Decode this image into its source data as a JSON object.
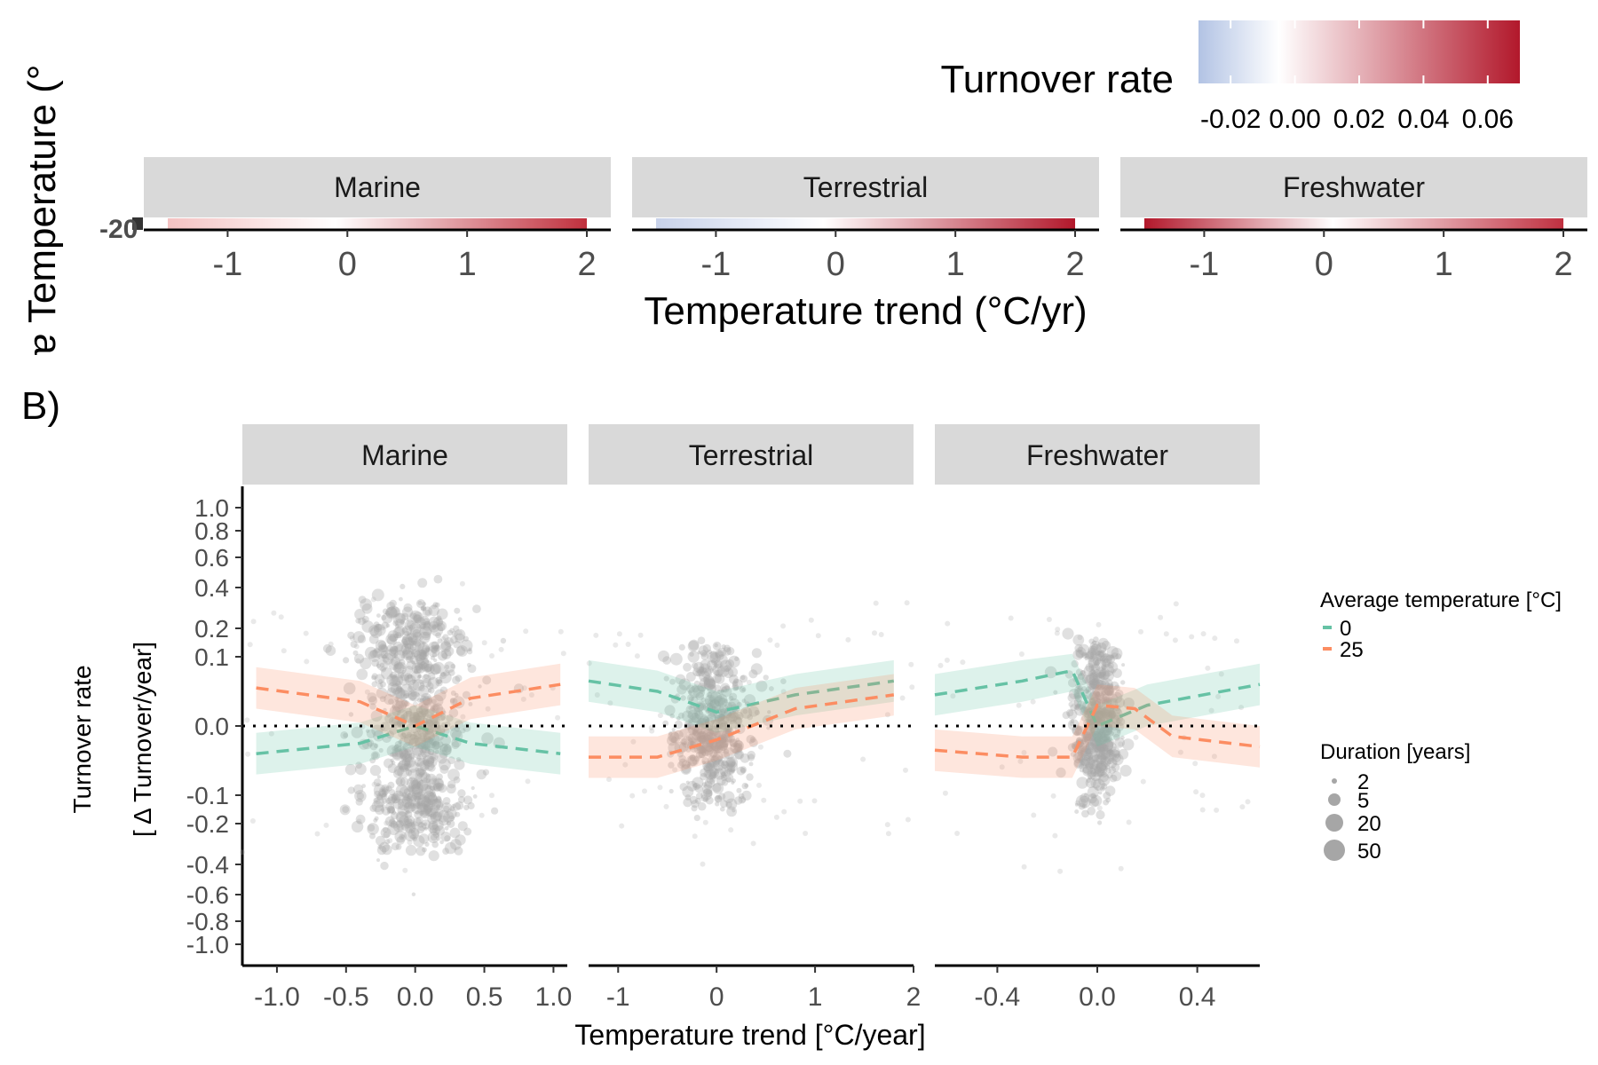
{
  "panel_a": {
    "y_label_fragment": "ɐ Temperature (°",
    "x_label": "Temperature trend (°C/yr)",
    "facets": [
      "Marine",
      "Terrestrial",
      "Freshwater"
    ],
    "x_ticks": [
      "-1",
      "0",
      "1",
      "2"
    ],
    "colorbar": {
      "title": "Turnover rate",
      "ticks": [
        "-0.02",
        "0.00",
        "0.02",
        "0.04",
        "0.06"
      ],
      "low_color": "#b2c3e4",
      "mid_color": "#ffffff",
      "high_color": "#b2182b"
    }
  },
  "panel_b": {
    "label": "B)"
  },
  "chart_data": {
    "type": "scatter",
    "title": "",
    "xlabel": "Temperature trend [°C/year]",
    "ylabel": "Turnover rate",
    "ylabel2": "[ Δ Turnover/year]",
    "y_ticks": [
      "1.0",
      "0.8",
      "0.6",
      "0.4",
      "0.2",
      "0.1",
      "0.0",
      "-0.1",
      "-0.2",
      "-0.4",
      "-0.6",
      "-0.8",
      "-1.0"
    ],
    "facets": [
      {
        "name": "Marine",
        "xlim": [
          -1.25,
          1.1
        ],
        "x_ticks": [
          "-1.0",
          "-0.5",
          "0.0",
          "0.5",
          "1.0"
        ],
        "x_cloud_range": [
          -0.35,
          0.35
        ],
        "series": [
          {
            "name": "0",
            "x": [
              -1.15,
              -0.4,
              0.0,
              0.4,
              1.05
            ],
            "y": [
              -0.04,
              -0.025,
              0.0,
              -0.025,
              -0.04
            ]
          },
          {
            "name": "25",
            "x": [
              -1.15,
              -0.4,
              0.0,
              0.4,
              1.05
            ],
            "y": [
              0.055,
              0.035,
              0.0,
              0.04,
              0.06
            ]
          }
        ]
      },
      {
        "name": "Terrestrial",
        "xlim": [
          -1.3,
          2.0
        ],
        "x_ticks": [
          "-1",
          "0",
          "1",
          "2"
        ],
        "x_cloud_range": [
          -0.4,
          0.35
        ],
        "series": [
          {
            "name": "0",
            "x": [
              -1.3,
              -0.6,
              0.0,
              0.8,
              1.8
            ],
            "y": [
              0.065,
              0.05,
              0.02,
              0.045,
              0.065
            ]
          },
          {
            "name": "25",
            "x": [
              -1.3,
              -0.6,
              0.0,
              0.8,
              1.8
            ],
            "y": [
              -0.045,
              -0.045,
              -0.02,
              0.025,
              0.045
            ]
          }
        ]
      },
      {
        "name": "Freshwater",
        "xlim": [
          -0.65,
          0.65
        ],
        "x_ticks": [
          "-0.4",
          "0.0",
          "0.4"
        ],
        "x_cloud_range": [
          -0.1,
          0.08
        ],
        "series": [
          {
            "name": "0",
            "x": [
              -0.65,
              -0.3,
              -0.1,
              0.0,
              0.2,
              0.65
            ],
            "y": [
              0.045,
              0.065,
              0.08,
              0.0,
              0.03,
              0.06
            ]
          },
          {
            "name": "25",
            "x": [
              -0.65,
              -0.3,
              -0.1,
              0.0,
              0.15,
              0.3,
              0.65
            ],
            "y": [
              -0.035,
              -0.045,
              -0.045,
              0.03,
              0.025,
              -0.015,
              -0.03
            ]
          }
        ]
      }
    ],
    "legend": {
      "color_title": "Average temperature [°C]",
      "color_entries": [
        {
          "label": "0",
          "color": "#66c2a5"
        },
        {
          "label": "25",
          "color": "#fc8d62"
        }
      ],
      "size_title": "Duration [years]",
      "size_entries": [
        "2",
        "5",
        "20",
        "50"
      ],
      "placement": "right"
    },
    "point_color": "#a6a6a6",
    "reference_line_y": 0.0
  }
}
